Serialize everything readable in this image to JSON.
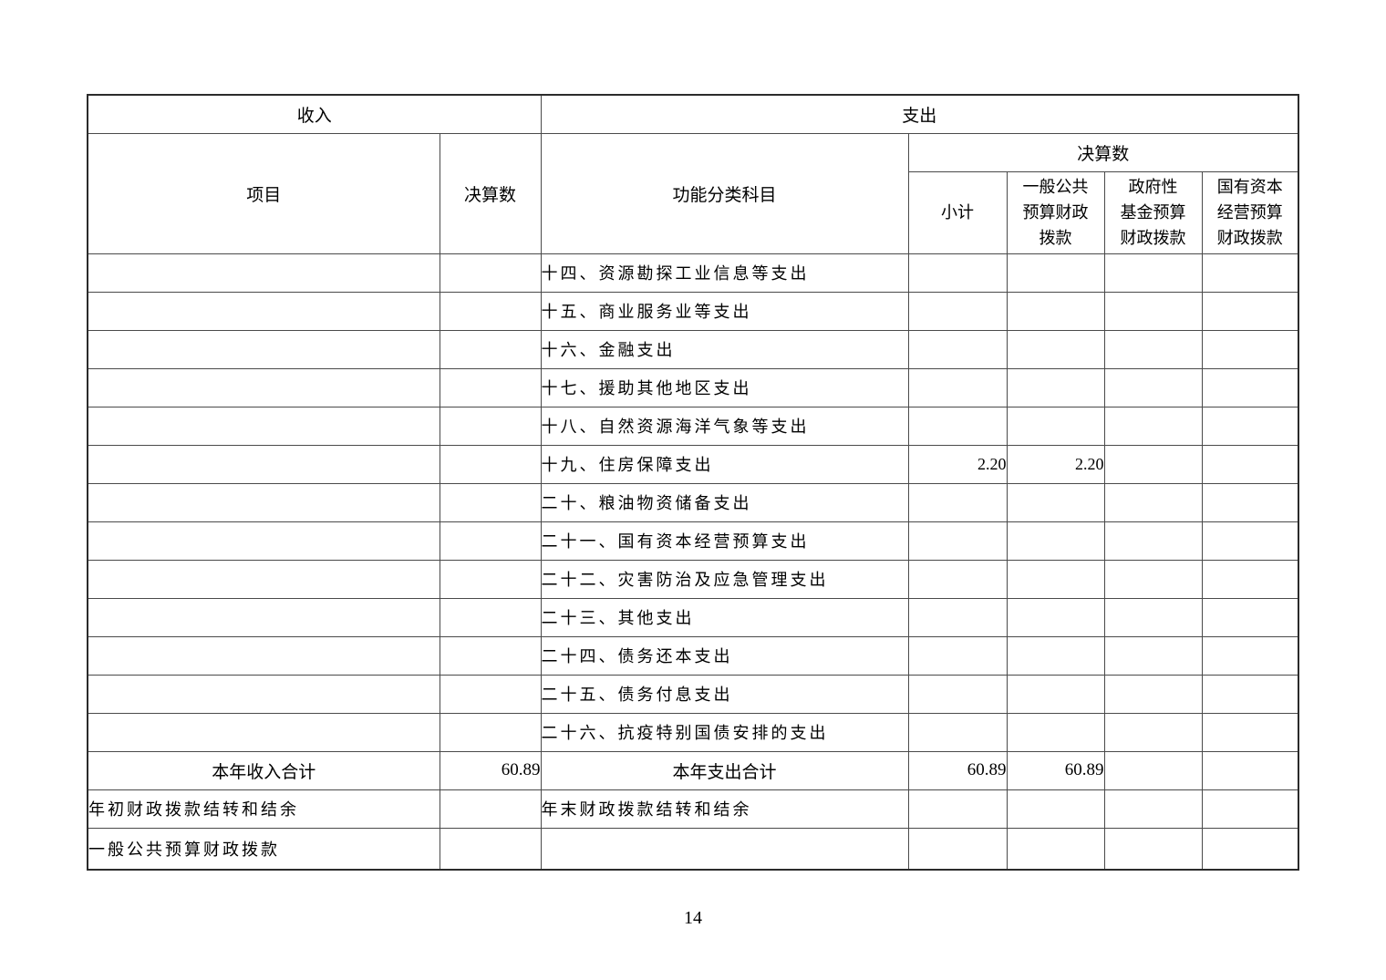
{
  "page": {
    "number": "14"
  },
  "table": {
    "sections": {
      "income": "收入",
      "expense": "支出"
    },
    "headers": {
      "item": "项目",
      "final_accounts_income": "决算数",
      "functional_category": "功能分类科目",
      "final_accounts_expense": "决算数",
      "subtotal": "小计",
      "general_public_budget": "一般公共\n预算财政\n拨款",
      "government_fund_budget": "政府性\n基金预算\n财政拨款",
      "state_capital_budget": "国有资本\n经营预算\n财政拨款"
    },
    "expense_rows": [
      {
        "category": "十四、资源勘探工业信息等支出",
        "subtotal": "",
        "general": "",
        "fund": "",
        "capital": ""
      },
      {
        "category": "十五、商业服务业等支出",
        "subtotal": "",
        "general": "",
        "fund": "",
        "capital": ""
      },
      {
        "category": "十六、金融支出",
        "subtotal": "",
        "general": "",
        "fund": "",
        "capital": ""
      },
      {
        "category": "十七、援助其他地区支出",
        "subtotal": "",
        "general": "",
        "fund": "",
        "capital": ""
      },
      {
        "category": "十八、自然资源海洋气象等支出",
        "subtotal": "",
        "general": "",
        "fund": "",
        "capital": ""
      },
      {
        "category": "十九、住房保障支出",
        "subtotal": "2.20",
        "general": "2.20",
        "fund": "",
        "capital": ""
      },
      {
        "category": "二十、粮油物资储备支出",
        "subtotal": "",
        "general": "",
        "fund": "",
        "capital": ""
      },
      {
        "category": "二十一、国有资本经营预算支出",
        "subtotal": "",
        "general": "",
        "fund": "",
        "capital": ""
      },
      {
        "category": "二十二、灾害防治及应急管理支出",
        "subtotal": "",
        "general": "",
        "fund": "",
        "capital": ""
      },
      {
        "category": "二十三、其他支出",
        "subtotal": "",
        "general": "",
        "fund": "",
        "capital": ""
      },
      {
        "category": "二十四、债务还本支出",
        "subtotal": "",
        "general": "",
        "fund": "",
        "capital": ""
      },
      {
        "category": "二十五、债务付息支出",
        "subtotal": "",
        "general": "",
        "fund": "",
        "capital": ""
      },
      {
        "category": "二十六、抗疫特别国债安排的支出",
        "subtotal": "",
        "general": "",
        "fund": "",
        "capital": ""
      }
    ],
    "totals": {
      "income_label": "本年收入合计",
      "income_value": "60.89",
      "expense_label": "本年支出合计",
      "subtotal": "60.89",
      "general": "60.89",
      "fund": "",
      "capital": ""
    },
    "carryover": {
      "income_label": "年初财政拨款结转和结余",
      "expense_label": "年末财政拨款结转和结余"
    },
    "detail": {
      "income_label": "一般公共预算财政拨款"
    }
  }
}
